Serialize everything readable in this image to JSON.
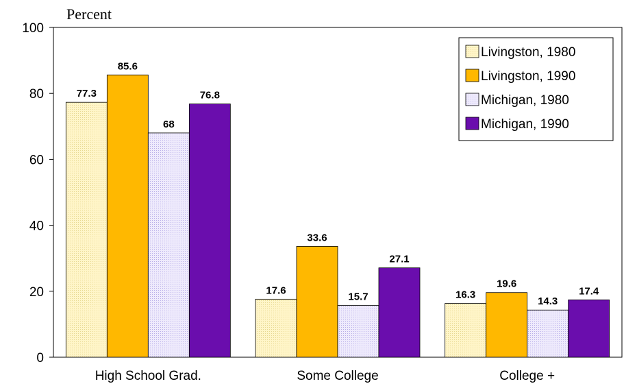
{
  "chart_data": {
    "type": "bar",
    "title": "",
    "ylabel": "Percent",
    "xlabel": "",
    "ylim": [
      0,
      100
    ],
    "yticks": [
      0,
      20,
      40,
      60,
      80,
      100
    ],
    "categories": [
      "High School Grad.",
      "Some College",
      "College +"
    ],
    "series": [
      {
        "name": "Livingston, 1980",
        "values": [
          77.3,
          17.6,
          16.3
        ],
        "labels": [
          "77.3",
          "17.6",
          "16.3"
        ],
        "color": "#FFF5C8",
        "pattern": "dots-light"
      },
      {
        "name": "Livingston, 1990",
        "values": [
          85.6,
          33.6,
          19.6
        ],
        "labels": [
          "85.6",
          "33.6",
          "19.6"
        ],
        "color": "#FFB800",
        "pattern": "solid"
      },
      {
        "name": "Michigan, 1980",
        "values": [
          68,
          15.7,
          14.3
        ],
        "labels": [
          "68",
          "15.7",
          "14.3"
        ],
        "color": "#E6E0FA",
        "pattern": "dots-lavender"
      },
      {
        "name": "Michigan, 1990",
        "values": [
          76.8,
          27.1,
          17.4
        ],
        "labels": [
          "76.8",
          "27.1",
          "17.4"
        ],
        "color": "#6A0DAD",
        "pattern": "solid"
      }
    ],
    "grid": false,
    "legend": "top-right"
  }
}
